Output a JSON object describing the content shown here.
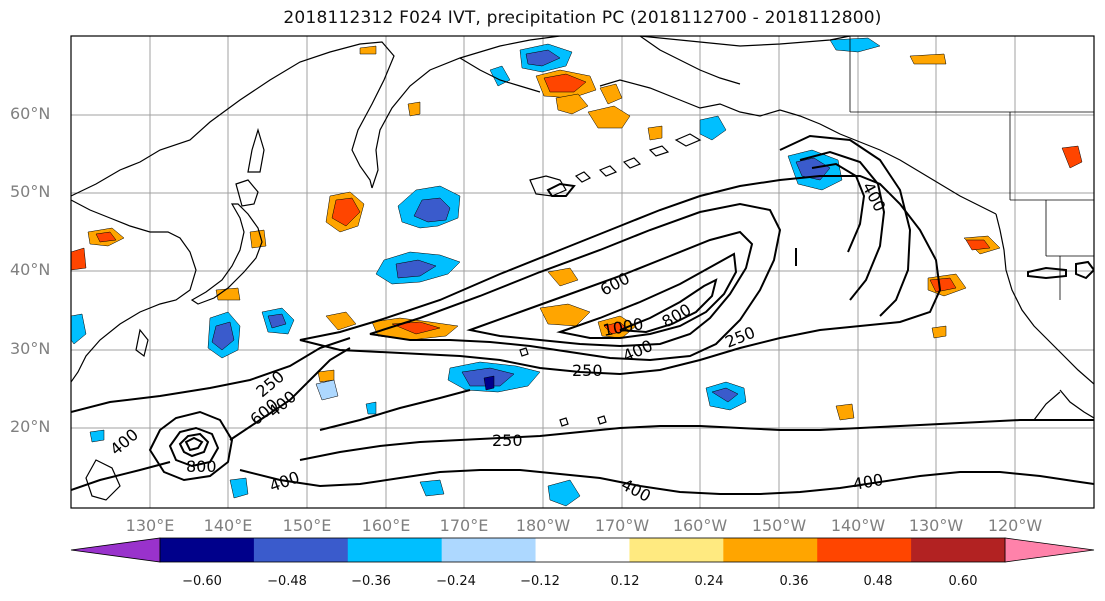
{
  "title": "2018112312 F024 IVT, precipitation PC (2018112700 - 2018112800)",
  "map": {
    "lat_ticks": [
      "60°N",
      "50°N",
      "40°N",
      "30°N",
      "20°N"
    ],
    "lon_ticks": [
      "130°E",
      "140°E",
      "150°E",
      "160°E",
      "170°E",
      "180°W",
      "170°W",
      "160°W",
      "150°W",
      "140°W",
      "130°W",
      "120°W"
    ],
    "contour_labels": [
      "600",
      "1000",
      "800",
      "400",
      "250",
      "250",
      "250",
      "400",
      "400",
      "600",
      "400",
      "800",
      "400",
      "250",
      "400",
      "400"
    ],
    "extent": {
      "lon": [
        120,
        250
      ],
      "lat": [
        10,
        70
      ]
    }
  },
  "colorbar": {
    "labels": [
      "−0.60",
      "−0.48",
      "−0.36",
      "−0.24",
      "−0.12",
      "0.12",
      "0.24",
      "0.36",
      "0.48",
      "0.60"
    ],
    "colors": [
      "#9932cc",
      "#00008b",
      "#3a5bcc",
      "#00bfff",
      "#add8ff",
      "#ffffff",
      "#ffea80",
      "#ffa500",
      "#ff4500",
      "#b22222",
      "#ff82aa"
    ]
  }
}
